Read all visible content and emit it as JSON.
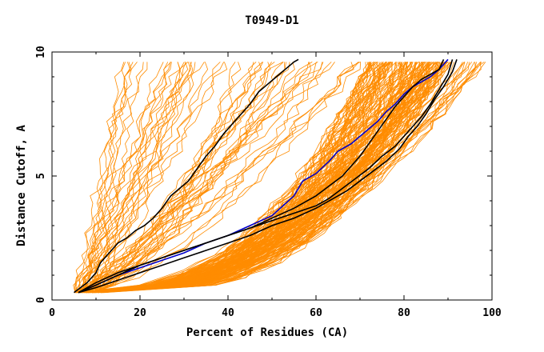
{
  "chart_data": {
    "type": "line",
    "title": "T0949-D1",
    "xlabel": "Percent of Residues (CA)",
    "ylabel": "Distance Cutoff, A",
    "xlim": [
      0,
      100
    ],
    "ylim": [
      0,
      10
    ],
    "xticks": [
      0,
      20,
      40,
      60,
      80,
      100
    ],
    "yticks": [
      0,
      5,
      10
    ],
    "grid": false,
    "legend": "none",
    "colors": {
      "background_models": "#ff8c00",
      "highlight_blue": "#0000cc",
      "highlight_black": "#000000"
    },
    "series": [
      {
        "color": "#000000",
        "x": [
          5,
          8,
          10,
          11,
          13,
          15,
          17,
          19,
          21,
          23,
          25,
          27,
          29,
          31,
          33,
          35,
          37,
          39,
          41,
          43,
          45,
          47,
          49,
          51,
          53,
          55,
          56
        ],
        "y": [
          0.3,
          0.7,
          1.1,
          1.5,
          1.9,
          2.3,
          2.5,
          2.8,
          3.0,
          3.3,
          3.7,
          4.2,
          4.5,
          4.8,
          5.3,
          5.8,
          6.2,
          6.7,
          7.1,
          7.5,
          7.9,
          8.4,
          8.7,
          9.0,
          9.3,
          9.6,
          9.7
        ]
      },
      {
        "color": "#0000cc",
        "x": [
          6,
          10,
          15,
          20,
          25,
          30,
          35,
          40,
          45,
          50,
          55,
          57,
          60,
          63,
          65,
          68,
          70,
          72,
          74,
          76,
          78,
          80,
          82,
          84,
          86,
          88,
          90
        ],
        "y": [
          0.3,
          0.6,
          1.0,
          1.3,
          1.6,
          1.9,
          2.3,
          2.6,
          3.0,
          3.4,
          4.2,
          4.8,
          5.1,
          5.6,
          6.0,
          6.3,
          6.6,
          6.9,
          7.2,
          7.6,
          7.9,
          8.3,
          8.6,
          8.8,
          9.0,
          9.3,
          9.7
        ]
      },
      {
        "color": "#000000",
        "x": [
          6,
          10,
          15,
          20,
          25,
          30,
          35,
          40,
          45,
          50,
          55,
          60,
          63,
          66,
          68,
          70,
          72,
          74,
          76,
          78,
          80,
          82,
          84,
          86,
          88,
          89
        ],
        "y": [
          0.3,
          0.7,
          1.1,
          1.4,
          1.7,
          2.0,
          2.3,
          2.6,
          2.9,
          3.3,
          3.7,
          4.2,
          4.6,
          5.0,
          5.4,
          5.8,
          6.3,
          6.8,
          7.3,
          7.8,
          8.2,
          8.6,
          8.9,
          9.1,
          9.3,
          9.7
        ]
      },
      {
        "color": "#000000",
        "x": [
          6,
          10,
          15,
          20,
          25,
          30,
          35,
          40,
          45,
          50,
          55,
          60,
          63,
          66,
          69,
          72,
          75,
          78,
          80,
          82,
          84,
          86,
          88,
          90,
          91
        ],
        "y": [
          0.3,
          0.6,
          1.0,
          1.4,
          1.7,
          2.0,
          2.3,
          2.6,
          2.9,
          3.2,
          3.5,
          3.8,
          4.1,
          4.5,
          4.9,
          5.3,
          5.8,
          6.2,
          6.6,
          7.0,
          7.4,
          7.9,
          8.5,
          9.1,
          9.7
        ]
      },
      {
        "color": "#000000",
        "x": [
          6,
          10,
          15,
          20,
          25,
          30,
          35,
          40,
          45,
          50,
          55,
          60,
          64,
          67,
          70,
          73,
          76,
          79,
          81,
          83,
          85,
          87,
          89,
          91,
          92
        ],
        "y": [
          0.3,
          0.5,
          0.8,
          1.1,
          1.4,
          1.7,
          2.0,
          2.3,
          2.6,
          3.0,
          3.3,
          3.7,
          4.1,
          4.4,
          4.8,
          5.2,
          5.6,
          6.1,
          6.6,
          7.0,
          7.5,
          8.1,
          8.6,
          9.2,
          9.7
        ]
      }
    ]
  }
}
